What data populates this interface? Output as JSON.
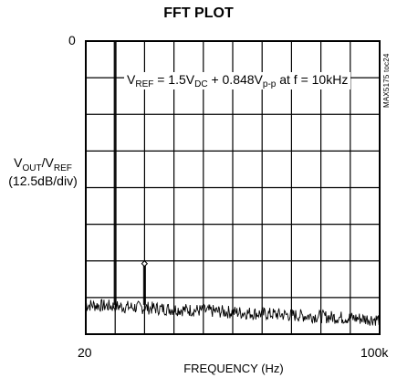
{
  "chart_data": {
    "type": "line",
    "title": "FFT PLOT",
    "ylabel": {
      "line1_main": "V",
      "line1_sub1": "OUT",
      "line1_sep": "/V",
      "line1_sub2": "REF",
      "line2": "(12.5dB/div)"
    },
    "xlabel": "FREQUENCY (Hz)",
    "y_top_tick": "0",
    "x_ticks": [
      "20",
      "100k"
    ],
    "xlim": [
      20,
      100000
    ],
    "ylim": [
      -100,
      0
    ],
    "x_divisions": 10,
    "y_divisions": 8,
    "grid": true,
    "annotation": {
      "p1": "V",
      "s1": "REF",
      "p2": " = 1.5V",
      "s2": "DC",
      "p3": " + 0.848V",
      "s3": "p-p",
      "p4": "  at f = 10kHz"
    },
    "side_tag": "MAX5175 toc24",
    "series": [
      {
        "peaks": [
          {
            "freq": 10000,
            "level_db": 0
          },
          {
            "freq": 20000,
            "level_db": -75
          }
        ],
        "noise_floor_db": [
          -90,
          -95
        ]
      }
    ]
  }
}
